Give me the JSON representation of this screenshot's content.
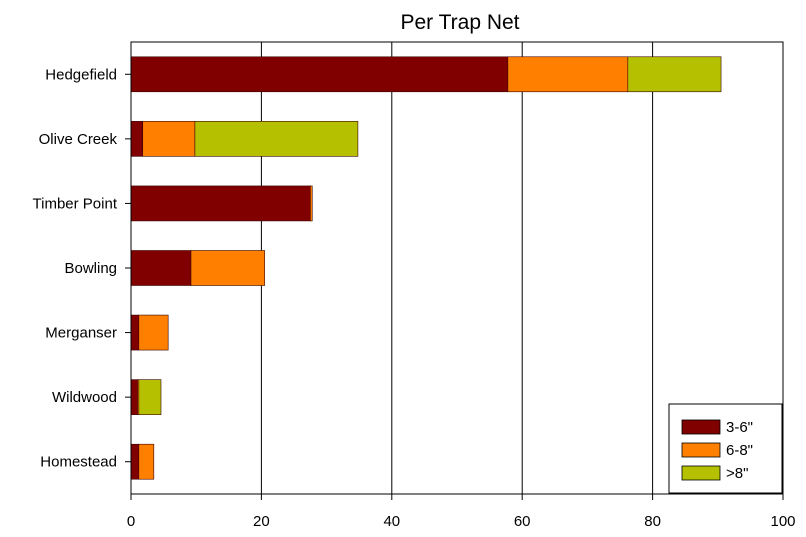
{
  "chart_data": {
    "type": "bar",
    "orientation": "horizontal",
    "stacked": true,
    "title": "Per Trap Net",
    "xlabel": "",
    "ylabel": "",
    "xlim": [
      0,
      100
    ],
    "x_ticks": [
      0,
      20,
      40,
      60,
      80,
      100
    ],
    "grid": "vertical major gridlines",
    "legend_position": "bottom-right",
    "categories": [
      "Hedgefield",
      "Olive Creek",
      "Timber Point",
      "Bowling",
      "Merganser",
      "Wildwood",
      "Homestead"
    ],
    "series": [
      {
        "name": "3-6\"",
        "color": "#800000",
        "values": [
          57.8,
          1.8,
          27.5,
          9.2,
          1.2,
          1.0,
          1.2
        ]
      },
      {
        "name": "6-8\"",
        "color": "#ff8000",
        "values": [
          18.4,
          8.0,
          0.3,
          11.3,
          4.5,
          0.2,
          2.3
        ]
      },
      {
        "name": ">8\"",
        "color": "#b5c000",
        "values": [
          14.3,
          25.0,
          0.0,
          0.0,
          0.0,
          3.4,
          0.0
        ]
      }
    ]
  }
}
